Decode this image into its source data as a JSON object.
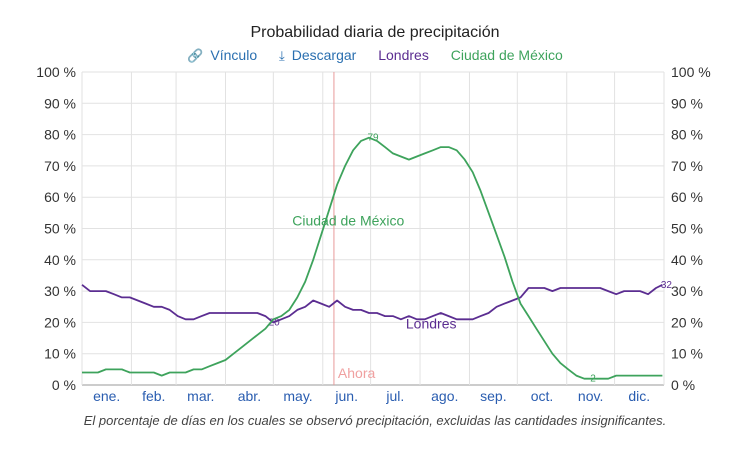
{
  "chart_data": {
    "type": "line",
    "title": "Probabilidad diaria de precipitación",
    "caption": "El porcentaje de días en los cuales se observó precipitación, excluidas las cantidades insignificantes.",
    "toolbar": {
      "link_label": "Vínculo",
      "link_icon": "link-icon",
      "download_label": "Descargar",
      "download_icon": "download-icon"
    },
    "legend": [
      {
        "label": "Londres",
        "color": "#5b2d91"
      },
      {
        "label": "Ciudad de México",
        "color": "#3ea35c"
      }
    ],
    "ylim": [
      0,
      100
    ],
    "y_ticks": [
      0,
      10,
      20,
      30,
      40,
      50,
      60,
      70,
      80,
      90,
      100
    ],
    "y_tick_labels": [
      "0 %",
      "10 %",
      "20 %",
      "30 %",
      "40 %",
      "50 %",
      "60 %",
      "70 %",
      "80 %",
      "90 %",
      "100 %"
    ],
    "xlim": [
      0,
      365
    ],
    "month_labels": [
      "ene.",
      "feb.",
      "mar.",
      "abr.",
      "may.",
      "jun.",
      "jul.",
      "ago.",
      "sep.",
      "oct.",
      "nov.",
      "dic."
    ],
    "month_starts": [
      0,
      31,
      59,
      90,
      120,
      151,
      181,
      212,
      243,
      273,
      304,
      334
    ],
    "grid": true,
    "now_marker": {
      "day": 158,
      "label": "Ahora",
      "color": "#e88"
    },
    "series": [
      {
        "name": "Londres",
        "color": "#5b2d91",
        "x": [
          0,
          5,
          10,
          15,
          20,
          25,
          30,
          35,
          40,
          45,
          50,
          55,
          60,
          65,
          70,
          75,
          80,
          85,
          90,
          95,
          100,
          105,
          110,
          115,
          120,
          125,
          130,
          135,
          140,
          145,
          150,
          155,
          160,
          165,
          170,
          175,
          180,
          185,
          190,
          195,
          200,
          205,
          210,
          215,
          220,
          225,
          230,
          235,
          240,
          245,
          250,
          255,
          260,
          265,
          270,
          275,
          280,
          285,
          290,
          295,
          300,
          305,
          310,
          315,
          320,
          325,
          330,
          335,
          340,
          345,
          350,
          355,
          360,
          364
        ],
        "y": [
          32,
          30,
          30,
          30,
          29,
          28,
          28,
          27,
          26,
          25,
          25,
          24,
          22,
          21,
          21,
          22,
          23,
          23,
          23,
          23,
          23,
          23,
          23,
          22,
          20,
          21,
          22,
          24,
          25,
          27,
          26,
          25,
          27,
          25,
          24,
          24,
          23,
          23,
          22,
          22,
          21,
          22,
          21,
          21,
          22,
          23,
          22,
          21,
          21,
          21,
          22,
          23,
          25,
          26,
          27,
          28,
          31,
          31,
          31,
          30,
          31,
          31,
          31,
          31,
          31,
          31,
          30,
          29,
          30,
          30,
          30,
          29,
          31,
          32
        ],
        "labels": [
          {
            "x": 118,
            "y": 20,
            "text": "20"
          },
          {
            "x": 364,
            "y": 32,
            "text": "32"
          }
        ],
        "series_label": {
          "x": 219,
          "y": 18,
          "text": "Londres"
        }
      },
      {
        "name": "Ciudad de México",
        "color": "#3ea35c",
        "x": [
          0,
          5,
          10,
          15,
          20,
          25,
          30,
          35,
          40,
          45,
          50,
          55,
          60,
          65,
          70,
          75,
          80,
          85,
          90,
          95,
          100,
          105,
          110,
          115,
          120,
          125,
          130,
          135,
          140,
          145,
          150,
          155,
          160,
          165,
          170,
          175,
          180,
          185,
          190,
          195,
          200,
          205,
          210,
          215,
          220,
          225,
          230,
          235,
          240,
          245,
          250,
          255,
          260,
          265,
          270,
          275,
          280,
          285,
          290,
          295,
          300,
          305,
          310,
          315,
          320,
          325,
          330,
          335,
          340,
          345,
          350,
          355,
          360,
          364
        ],
        "y": [
          4,
          4,
          4,
          5,
          5,
          5,
          4,
          4,
          4,
          4,
          3,
          4,
          4,
          4,
          5,
          5,
          6,
          7,
          8,
          10,
          12,
          14,
          16,
          18,
          21,
          22,
          24,
          28,
          33,
          40,
          48,
          56,
          64,
          70,
          75,
          78,
          79,
          78,
          76,
          74,
          73,
          72,
          73,
          74,
          75,
          76,
          76,
          75,
          72,
          68,
          62,
          55,
          48,
          41,
          33,
          26,
          22,
          18,
          14,
          10,
          7,
          5,
          3,
          2,
          2,
          2,
          2,
          3,
          3,
          3,
          3,
          3,
          3,
          3
        ],
        "labels": [
          {
            "x": 180,
            "y": 79,
            "text": "79"
          },
          {
            "x": 318,
            "y": 2,
            "text": "2"
          }
        ],
        "series_label": {
          "x": 167,
          "y": 51,
          "text": "Ciudad de México"
        }
      }
    ]
  }
}
